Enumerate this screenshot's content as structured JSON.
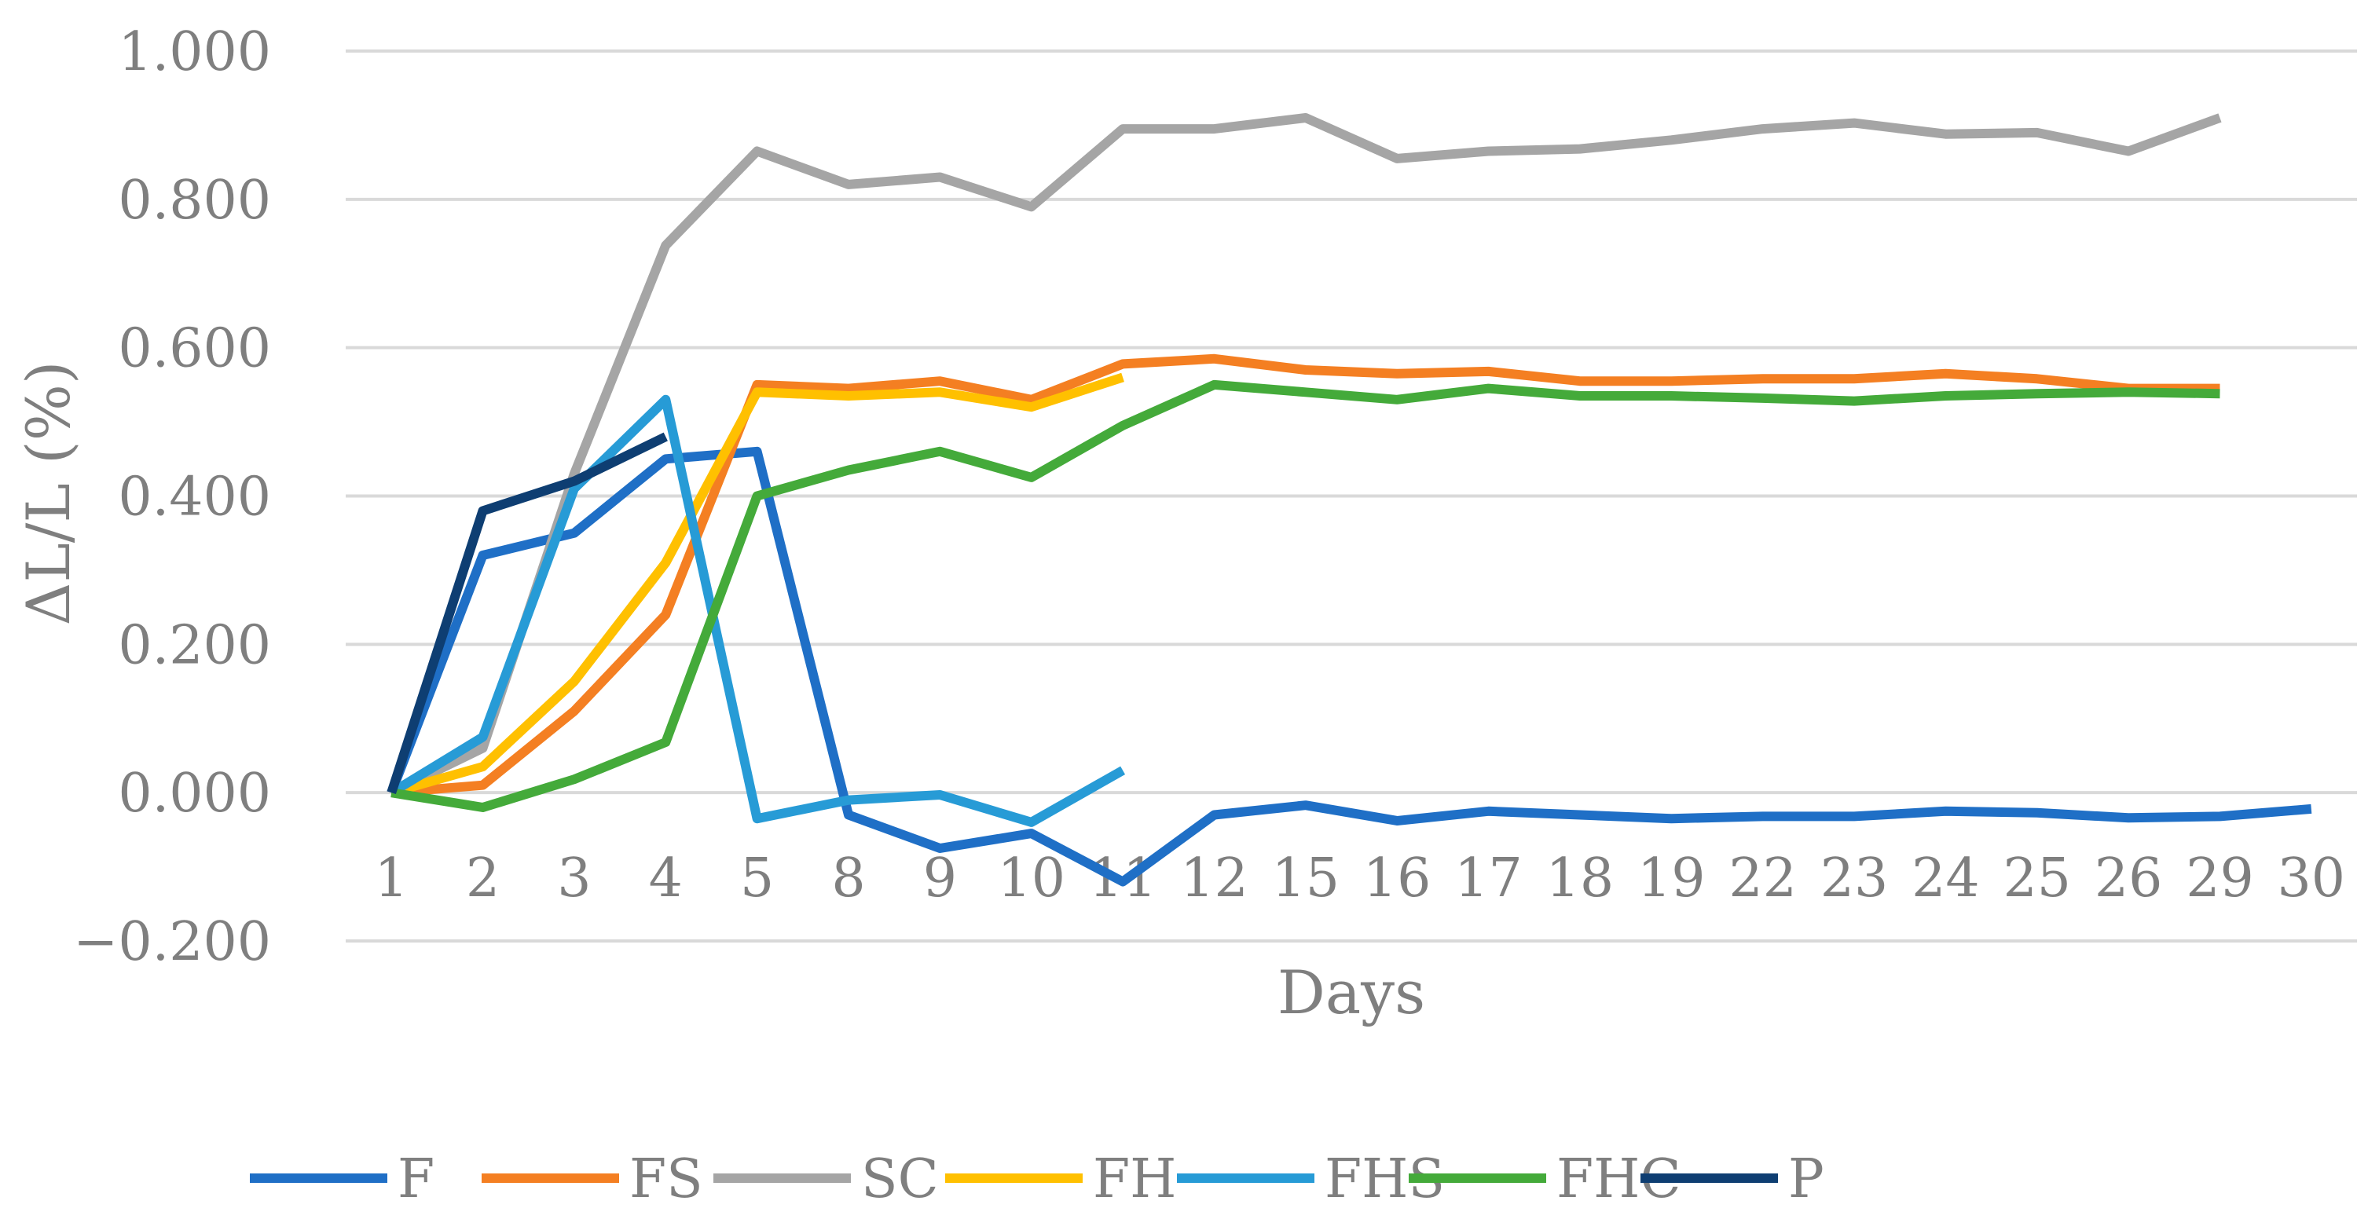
{
  "chart_data": {
    "type": "line",
    "title": "",
    "xlabel": "Days",
    "ylabel": "ΔL/L (%)",
    "categories": [
      "1",
      "2",
      "3",
      "4",
      "5",
      "8",
      "9",
      "10",
      "11",
      "12",
      "15",
      "16",
      "17",
      "18",
      "19",
      "22",
      "23",
      "24",
      "25",
      "26",
      "29",
      "30"
    ],
    "y_ticks": [
      "1.000",
      "0.800",
      "0.600",
      "0.400",
      "0.200",
      "0.000",
      "−0.200"
    ],
    "ylim": [
      -0.2,
      1.0
    ],
    "grid": true,
    "legend_position": "bottom",
    "series": [
      {
        "name": "F",
        "color": "#1f6fc6",
        "values": [
          0.0,
          0.32,
          0.35,
          0.45,
          0.46,
          -0.03,
          -0.075,
          -0.055,
          -0.12,
          -0.03,
          -0.017,
          -0.038,
          -0.025,
          -0.03,
          -0.035,
          -0.032,
          -0.032,
          -0.025,
          -0.027,
          -0.034,
          -0.032,
          -0.022
        ]
      },
      {
        "name": "FS",
        "color": "#f47f22",
        "values": [
          0.0,
          0.01,
          0.11,
          0.24,
          0.55,
          0.545,
          0.555,
          0.53,
          0.578,
          0.585,
          0.57,
          0.565,
          0.568,
          0.555,
          0.555,
          0.558,
          0.558,
          0.565,
          0.558,
          0.545,
          0.545,
          null
        ]
      },
      {
        "name": "SC",
        "color": "#a5a5a5",
        "values": [
          0.0,
          0.06,
          0.43,
          0.738,
          0.865,
          0.82,
          0.83,
          0.79,
          0.895,
          0.895,
          0.91,
          0.855,
          0.865,
          0.868,
          0.88,
          0.895,
          0.903,
          0.888,
          0.89,
          0.865,
          0.91,
          null
        ]
      },
      {
        "name": "FH",
        "color": "#ffc000",
        "values": [
          0.0,
          0.035,
          0.15,
          0.31,
          0.54,
          0.535,
          0.54,
          0.52,
          0.56,
          null,
          null,
          null,
          null,
          null,
          null,
          null,
          null,
          null,
          null,
          null,
          null,
          null
        ]
      },
      {
        "name": "FHS",
        "color": "#279bd6",
        "values": [
          0.0,
          0.075,
          0.41,
          0.53,
          -0.035,
          -0.01,
          -0.003,
          -0.04,
          0.03,
          null,
          null,
          null,
          null,
          null,
          null,
          null,
          null,
          null,
          null,
          null,
          null,
          null
        ]
      },
      {
        "name": "FHC",
        "color": "#44aa3a",
        "values": [
          0.0,
          -0.02,
          0.018,
          0.068,
          0.4,
          0.435,
          0.46,
          0.425,
          0.495,
          0.55,
          0.54,
          0.53,
          0.545,
          0.535,
          0.535,
          0.532,
          0.528,
          0.535,
          0.538,
          0.54,
          0.538,
          null
        ]
      },
      {
        "name": "P",
        "color": "#0e3e72",
        "values": [
          0.0,
          0.38,
          0.42,
          0.48,
          null,
          null,
          null,
          null,
          null,
          null,
          null,
          null,
          null,
          null,
          null,
          null,
          null,
          null,
          null,
          null,
          null,
          null
        ]
      }
    ]
  }
}
